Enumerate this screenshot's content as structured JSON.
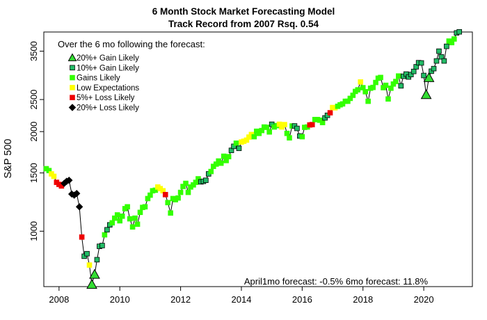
{
  "chart_data": {
    "type": "scatter",
    "title": "6 Month Stock Market Forecasting Model",
    "subtitle": "Track Record from 2007    Rsq. 0.54",
    "xlabel": "",
    "ylabel": "S&P 500",
    "y_scale": "log",
    "xlim": [
      2007.5,
      2021.6
    ],
    "ylim": [
      680,
      4000
    ],
    "x_ticks": [
      2008,
      2010,
      2012,
      2014,
      2016,
      2018,
      2020
    ],
    "x_tick_labels": [
      "2008",
      "2010",
      "2012",
      "2014",
      "2016",
      "2018",
      "2020"
    ],
    "y_ticks": [
      1000,
      1500,
      2000,
      2500,
      3500
    ],
    "y_tick_labels": [
      "1000",
      "1500",
      "2000",
      "2500",
      "3500"
    ],
    "grid": false,
    "legend": {
      "placement": "top-left",
      "heading": "Over the 6 mo following the forecast:",
      "entries": [
        {
          "label": "20%+ Gain Likely",
          "color": "#33dd33",
          "shape": "triangle"
        },
        {
          "label": "10%+ Gain Likely",
          "color": "#22bb66",
          "shape": "square"
        },
        {
          "label": "Gains Likely",
          "color": "#33ff00",
          "shape": "square"
        },
        {
          "label": "Low Expectations",
          "color": "#ffff00",
          "shape": "square"
        },
        {
          "label": "5%+  Loss Likely",
          "color": "#ee0000",
          "shape": "square"
        },
        {
          "label": "20%+  Loss Likely",
          "color": "#000000",
          "shape": "diamond"
        }
      ]
    },
    "annotation": "April1mo forecast: -0.5%  6mo forecast: 11.8%",
    "points": [
      [
        2007.58,
        1545,
        2
      ],
      [
        2007.67,
        1525,
        2
      ],
      [
        2007.75,
        1490,
        3
      ],
      [
        2007.83,
        1465,
        3
      ],
      [
        2007.92,
        1405,
        4
      ],
      [
        2008.0,
        1385,
        4
      ],
      [
        2008.08,
        1370,
        4
      ],
      [
        2008.17,
        1395,
        5
      ],
      [
        2008.25,
        1415,
        5
      ],
      [
        2008.33,
        1425,
        5
      ],
      [
        2008.42,
        1295,
        5
      ],
      [
        2008.5,
        1285,
        5
      ],
      [
        2008.58,
        1300,
        5
      ],
      [
        2008.67,
        1185,
        5
      ],
      [
        2008.75,
        960,
        4
      ],
      [
        2008.83,
        840,
        1
      ],
      [
        2008.92,
        855,
        1
      ],
      [
        2009.0,
        790,
        3
      ],
      [
        2009.08,
        690,
        0
      ],
      [
        2009.17,
        740,
        0
      ],
      [
        2009.25,
        820,
        1
      ],
      [
        2009.33,
        900,
        1
      ],
      [
        2009.42,
        905,
        1
      ],
      [
        2009.5,
        975,
        2
      ],
      [
        2009.58,
        1010,
        1
      ],
      [
        2009.67,
        1045,
        1
      ],
      [
        2009.75,
        1060,
        2
      ],
      [
        2009.83,
        1095,
        2
      ],
      [
        2009.92,
        1120,
        2
      ],
      [
        2010.0,
        1075,
        2
      ],
      [
        2010.08,
        1110,
        2
      ],
      [
        2010.17,
        1170,
        2
      ],
      [
        2010.25,
        1185,
        2
      ],
      [
        2010.33,
        1090,
        2
      ],
      [
        2010.42,
        1030,
        2
      ],
      [
        2010.5,
        1095,
        2
      ],
      [
        2010.58,
        1050,
        2
      ],
      [
        2010.67,
        1140,
        2
      ],
      [
        2010.75,
        1180,
        2
      ],
      [
        2010.83,
        1185,
        2
      ],
      [
        2010.92,
        1255,
        2
      ],
      [
        2011.0,
        1285,
        2
      ],
      [
        2011.08,
        1325,
        2
      ],
      [
        2011.17,
        1330,
        2
      ],
      [
        2011.25,
        1360,
        3
      ],
      [
        2011.33,
        1345,
        3
      ],
      [
        2011.42,
        1325,
        3
      ],
      [
        2011.5,
        1290,
        4
      ],
      [
        2011.58,
        1220,
        2
      ],
      [
        2011.67,
        1135,
        2
      ],
      [
        2011.75,
        1255,
        2
      ],
      [
        2011.83,
        1245,
        2
      ],
      [
        2011.92,
        1260,
        2
      ],
      [
        2012.0,
        1310,
        2
      ],
      [
        2012.08,
        1365,
        2
      ],
      [
        2012.17,
        1395,
        2
      ],
      [
        2012.25,
        1310,
        2
      ],
      [
        2012.33,
        1360,
        2
      ],
      [
        2012.42,
        1380,
        2
      ],
      [
        2012.5,
        1405,
        2
      ],
      [
        2012.58,
        1440,
        2
      ],
      [
        2012.67,
        1410,
        1
      ],
      [
        2012.75,
        1415,
        1
      ],
      [
        2012.83,
        1425,
        1
      ],
      [
        2012.92,
        1490,
        1
      ],
      [
        2013.0,
        1515,
        2
      ],
      [
        2013.08,
        1570,
        2
      ],
      [
        2013.17,
        1595,
        2
      ],
      [
        2013.25,
        1630,
        2
      ],
      [
        2013.33,
        1605,
        2
      ],
      [
        2013.42,
        1685,
        2
      ],
      [
        2013.5,
        1635,
        2
      ],
      [
        2013.58,
        1680,
        2
      ],
      [
        2013.67,
        1755,
        1
      ],
      [
        2013.75,
        1805,
        1
      ],
      [
        2013.83,
        1845,
        2
      ],
      [
        2013.92,
        1780,
        1
      ],
      [
        2014.0,
        1860,
        3
      ],
      [
        2014.08,
        1870,
        3
      ],
      [
        2014.17,
        1885,
        3
      ],
      [
        2014.25,
        1925,
        3
      ],
      [
        2014.33,
        1960,
        3
      ],
      [
        2014.42,
        1930,
        2
      ],
      [
        2014.5,
        2005,
        2
      ],
      [
        2014.58,
        1975,
        2
      ],
      [
        2014.67,
        2015,
        2
      ],
      [
        2014.75,
        2065,
        2
      ],
      [
        2014.83,
        2060,
        2
      ],
      [
        2014.92,
        1995,
        2
      ],
      [
        2015.0,
        2105,
        1
      ],
      [
        2015.08,
        2065,
        2
      ],
      [
        2015.17,
        2085,
        2
      ],
      [
        2015.25,
        2105,
        3
      ],
      [
        2015.33,
        2065,
        3
      ],
      [
        2015.42,
        2100,
        3
      ],
      [
        2015.5,
        1975,
        2
      ],
      [
        2015.58,
        1915,
        2
      ],
      [
        2015.67,
        2080,
        2
      ],
      [
        2015.75,
        2080,
        1
      ],
      [
        2015.83,
        2045,
        1
      ],
      [
        2015.92,
        1940,
        1
      ],
      [
        2016.0,
        1930,
        2
      ],
      [
        2016.08,
        2060,
        2
      ],
      [
        2016.17,
        2065,
        2
      ],
      [
        2016.25,
        2095,
        4
      ],
      [
        2016.33,
        2100,
        4
      ],
      [
        2016.42,
        2175,
        2
      ],
      [
        2016.5,
        2175,
        2
      ],
      [
        2016.58,
        2165,
        2
      ],
      [
        2016.67,
        2130,
        2
      ],
      [
        2016.75,
        2200,
        1
      ],
      [
        2016.83,
        2240,
        1
      ],
      [
        2016.92,
        2280,
        4
      ],
      [
        2017.0,
        2365,
        3
      ],
      [
        2017.08,
        2360,
        3
      ],
      [
        2017.17,
        2385,
        2
      ],
      [
        2017.25,
        2410,
        2
      ],
      [
        2017.33,
        2425,
        2
      ],
      [
        2017.42,
        2470,
        2
      ],
      [
        2017.5,
        2470,
        2
      ],
      [
        2017.58,
        2520,
        2
      ],
      [
        2017.67,
        2575,
        2
      ],
      [
        2017.75,
        2645,
        2
      ],
      [
        2017.83,
        2675,
        2
      ],
      [
        2017.92,
        2825,
        3
      ],
      [
        2018.0,
        2715,
        2
      ],
      [
        2018.08,
        2640,
        2
      ],
      [
        2018.17,
        2470,
        2
      ],
      [
        2018.25,
        2705,
        2
      ],
      [
        2018.33,
        2720,
        2
      ],
      [
        2018.42,
        2815,
        2
      ],
      [
        2018.5,
        2900,
        2
      ],
      [
        2018.58,
        2915,
        2
      ],
      [
        2018.67,
        2715,
        2
      ],
      [
        2018.75,
        2760,
        2
      ],
      [
        2018.83,
        2510,
        2
      ],
      [
        2018.92,
        2705,
        2
      ],
      [
        2019.0,
        2785,
        2
      ],
      [
        2019.08,
        2835,
        2
      ],
      [
        2019.17,
        2945,
        2
      ],
      [
        2019.25,
        2750,
        1
      ],
      [
        2019.33,
        2940,
        1
      ],
      [
        2019.42,
        2985,
        1
      ],
      [
        2019.5,
        2925,
        1
      ],
      [
        2019.58,
        2975,
        1
      ],
      [
        2019.67,
        3040,
        1
      ],
      [
        2019.75,
        3140,
        1
      ],
      [
        2019.83,
        3230,
        1
      ],
      [
        2019.92,
        3225,
        1
      ],
      [
        2020.0,
        2955,
        1
      ],
      [
        2020.08,
        2585,
        0
      ],
      [
        2020.17,
        2910,
        0
      ],
      [
        2020.25,
        3045,
        1
      ],
      [
        2020.33,
        3100,
        1
      ],
      [
        2020.42,
        3270,
        1
      ],
      [
        2020.5,
        3500,
        1
      ],
      [
        2020.58,
        3365,
        1
      ],
      [
        2020.67,
        3270,
        1
      ],
      [
        2020.75,
        3620,
        1
      ],
      [
        2020.83,
        3755,
        2
      ],
      [
        2020.92,
        3715,
        2
      ],
      [
        2021.0,
        3810,
        2
      ],
      [
        2021.08,
        3975,
        1
      ],
      [
        2021.17,
        4005,
        1
      ]
    ]
  }
}
